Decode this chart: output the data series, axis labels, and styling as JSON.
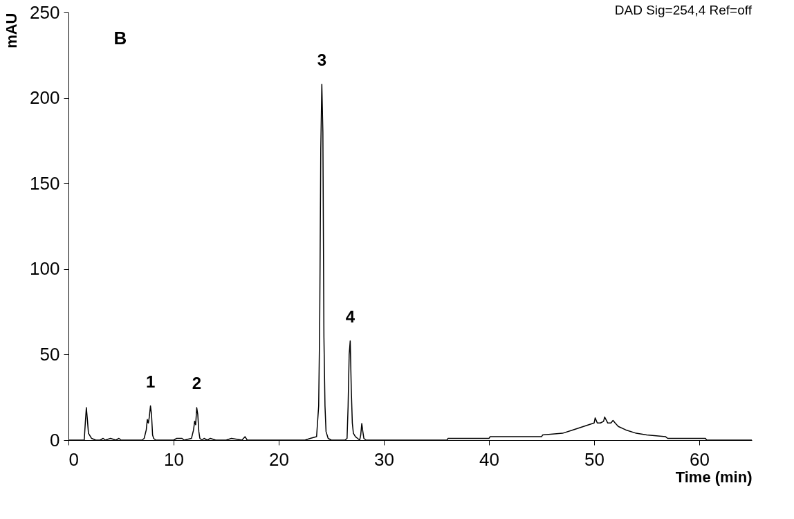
{
  "chart_data": {
    "type": "line",
    "xlabel": "Time (min)",
    "ylabel": "mAU",
    "xlim": [
      0,
      65
    ],
    "ylim": [
      0,
      250
    ],
    "xticks": [
      0,
      10,
      20,
      30,
      40,
      50,
      60
    ],
    "yticks": [
      0,
      50,
      100,
      150,
      200,
      250
    ],
    "grid": false,
    "marker": "none",
    "line_style": "solid",
    "series": [
      {
        "color": "#000000",
        "x": [
          0,
          1.5,
          1.6,
          1.7,
          1.8,
          1.9,
          2.2,
          2.6,
          3,
          3.3,
          3.5,
          4,
          4.5,
          4.8,
          5,
          7,
          7.2,
          7.4,
          7.5,
          7.6,
          7.7,
          7.8,
          7.9,
          8.0,
          8.1,
          8.3,
          8.5,
          10,
          10.3,
          10.8,
          11,
          11.7,
          11.9,
          12.0,
          12.1,
          12.2,
          12.3,
          12.4,
          12.5,
          12.7,
          12.9,
          13.2,
          13.5,
          14,
          15,
          15.5,
          16.5,
          16.8,
          17,
          17.5,
          18,
          22.5,
          23,
          23.6,
          23.8,
          23.9,
          24.0,
          24.1,
          24.2,
          24.3,
          24.4,
          24.5,
          24.7,
          25,
          25.5,
          26.3,
          26.5,
          26.6,
          26.7,
          26.8,
          26.9,
          27.0,
          27.1,
          27.3,
          27.5,
          27.7,
          27.8,
          27.9,
          28.0,
          28.1,
          28.3,
          30,
          36,
          36.1,
          40,
          40.1,
          45,
          45.1,
          47,
          48,
          49,
          49.5,
          50,
          50.1,
          50.3,
          50.6,
          50.9,
          51.0,
          51.3,
          51.6,
          51.8,
          52.0,
          52.3,
          53,
          54,
          55,
          56.8,
          57,
          60.6,
          60.7,
          65
        ],
        "values": [
          0,
          0,
          10,
          19,
          12,
          4,
          1,
          0,
          0,
          1,
          0,
          1,
          0,
          1,
          0,
          0,
          1,
          6,
          12,
          10,
          14,
          20,
          15,
          3,
          1,
          0,
          0,
          0,
          1,
          1,
          0,
          1,
          6,
          11,
          9,
          19,
          15,
          5,
          1,
          0,
          1,
          0,
          1,
          0,
          0,
          1,
          0,
          2,
          0,
          0,
          0,
          0,
          1,
          2,
          20,
          70,
          170,
          208,
          180,
          60,
          20,
          5,
          1,
          0,
          0,
          0,
          1,
          20,
          50,
          58,
          30,
          10,
          4,
          2,
          1,
          0,
          3,
          9.7,
          5,
          1,
          0,
          0,
          0,
          1,
          1,
          2,
          2,
          3,
          4,
          6,
          8,
          9,
          10,
          13,
          10,
          10,
          11,
          13.5,
          10,
          10,
          11.5,
          10,
          8,
          6,
          4,
          3,
          2,
          1,
          1,
          0,
          0
        ]
      }
    ],
    "annotations": [
      {
        "text": "1",
        "x": 7.8,
        "y": 20
      },
      {
        "text": "2",
        "x": 12.2,
        "y": 19
      },
      {
        "text": "3",
        "x": 24.1,
        "y": 208
      },
      {
        "text": "4",
        "x": 26.8,
        "y": 58
      },
      "B",
      "DAD Sig=254,4 Ref=off"
    ]
  }
}
